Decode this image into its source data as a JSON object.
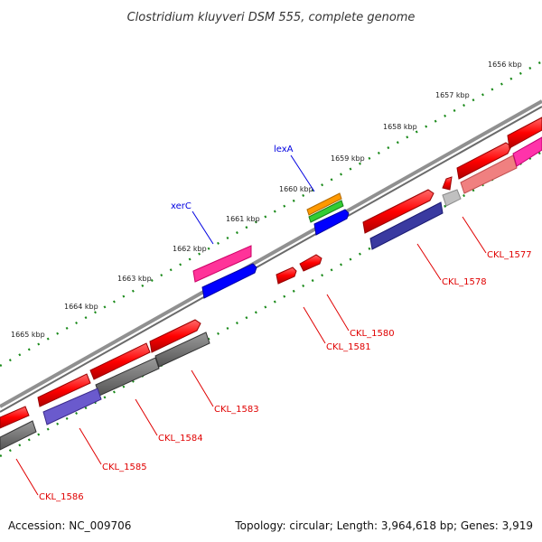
{
  "header": {
    "title": "Clostridium kluyveri DSM 555, complete genome"
  },
  "footer": {
    "accession": "Accession: NC_009706",
    "topology": "Topology: circular; Length: 3,964,618 bp; Genes: 3,919"
  },
  "colors": {
    "backbone": "#8a8a8a",
    "tick": "#1a8a1a",
    "label_red": "#e00000",
    "label_blue": "#0000e0"
  },
  "kbp_labels": [
    "1656 kbp",
    "1657 kbp",
    "1658 kbp",
    "1659 kbp",
    "1660 kbp",
    "1661 kbp",
    "1662 kbp",
    "1663 kbp",
    "1664 kbp",
    "1665 kbp"
  ],
  "gene_labels": {
    "xerC": "xerC",
    "lexA": "lexA",
    "CKL_1577": "CKL_1577",
    "CKL_1578": "CKL_1578",
    "CKL_1580": "CKL_1580",
    "CKL_1581": "CKL_1581",
    "CKL_1583": "CKL_1583",
    "CKL_1584": "CKL_1584",
    "CKL_1585": "CKL_1585",
    "CKL_1586": "CKL_1586"
  }
}
